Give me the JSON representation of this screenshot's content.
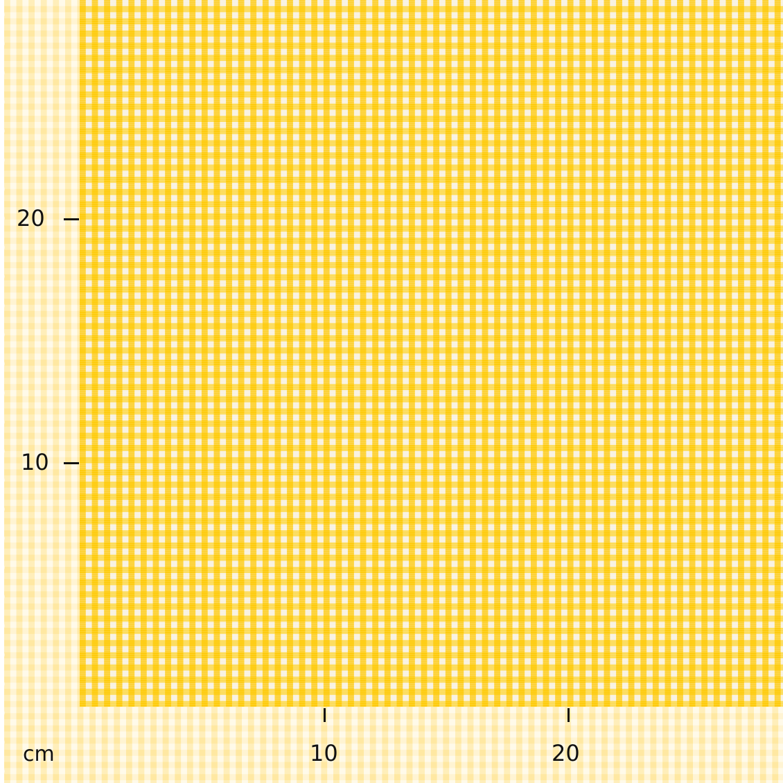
{
  "product": {
    "pattern": "gingham check",
    "colors": {
      "primary": "#ffcc00",
      "secondary": "#f8f3e4"
    }
  },
  "ruler": {
    "unit": "cm",
    "y_ticks": [
      "20",
      "10"
    ],
    "x_ticks": [
      "10",
      "20"
    ]
  }
}
